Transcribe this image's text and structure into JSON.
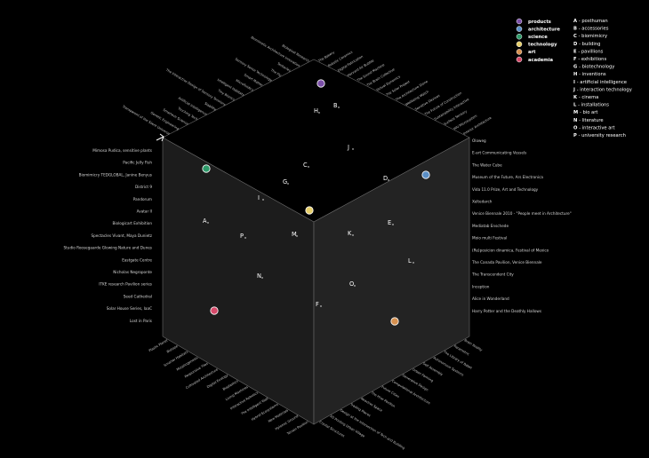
{
  "categories": [
    {
      "label": "products",
      "color": "#7b4fa8"
    },
    {
      "label": "architecture",
      "color": "#5b8fc6"
    },
    {
      "label": "science",
      "color": "#2e9a6a"
    },
    {
      "label": "technology",
      "color": "#e6cf6a"
    },
    {
      "label": "art",
      "color": "#d6904f"
    },
    {
      "label": "academia",
      "color": "#d64a6a"
    }
  ],
  "legend": [
    {
      "key": "A",
      "text": "- posthuman"
    },
    {
      "key": "B",
      "text": "- accessories"
    },
    {
      "key": "C",
      "text": "- biomimicry"
    },
    {
      "key": "D",
      "text": "- building"
    },
    {
      "key": "E",
      "text": "- pavillions"
    },
    {
      "key": "F",
      "text": "- exhibitions"
    },
    {
      "key": "G",
      "text": "- biotechnology"
    },
    {
      "key": "H",
      "text": "- inventions"
    },
    {
      "key": "I",
      "text": "- artificial intelligence"
    },
    {
      "key": "J",
      "text": "- interaction technology"
    },
    {
      "key": "K",
      "text": "- cinema"
    },
    {
      "key": "L",
      "text": "- installations"
    },
    {
      "key": "M",
      "text": "- bio art"
    },
    {
      "key": "N",
      "text": "- literature"
    },
    {
      "key": "O",
      "text": "- interactive art"
    },
    {
      "key": "P",
      "text": "- university research"
    }
  ],
  "points": [
    {
      "key": "H"
    },
    {
      "key": "B"
    },
    {
      "key": "J"
    },
    {
      "key": "C"
    },
    {
      "key": "G"
    },
    {
      "key": "I"
    },
    {
      "key": "D"
    },
    {
      "key": "A"
    },
    {
      "key": "P"
    },
    {
      "key": "M"
    },
    {
      "key": "K"
    },
    {
      "key": "E"
    },
    {
      "key": "L"
    },
    {
      "key": "N"
    },
    {
      "key": "O"
    },
    {
      "key": "F"
    }
  ],
  "left_labels": [
    "Mimosa Pudica, sensitive plants",
    "Pacific Jelly Fish",
    "Biomimicry TEDGLOBAL, Janine Benyus",
    "District 9",
    "Pandorum",
    "Avatar II",
    "Biologicart Exhibition",
    "Spectacles Vivant, Maya Dunietz",
    "Studio Roosegaarde Glowing Nature and Dunes",
    "Eastgate Centre",
    "Nicholas Negroponte",
    "ITKE research Pavilion series",
    "Seed Cathedral",
    "Solar House Series, IaaC",
    "Lost in Paris"
  ],
  "right_labels": [
    "Oloweg",
    "E-art Communicating Vessels",
    "The Water Cube",
    "Museum of the Future, Ars Electronica",
    "Vida 11.0 Prize, Art and Technology",
    "Xeltedarch",
    "Venice Biennale 2010 - \"People meet in Architecture\"",
    "Mediatab Enschede",
    "Moio multi Festival",
    "(Re)posicion dinamica, Festival of Mexico",
    "The Canada Pavilion, Venice Biennale",
    "The Transcendent City",
    "Inception",
    "Alice in Wonderland",
    "Harry Potter and the Deathly Hallows"
  ],
  "top_left_labels": [
    "Transparent of the Silent Universe",
    "Genetic Engineering",
    "Smartech Science",
    "Touching Tech",
    "Artificial Intelligence",
    "Stablilty",
    "The Interactive Design of Sensory Tensions",
    "Tiny Bionics",
    "Intelligent Habitats",
    "Microfluidics",
    "Smart Matter",
    "Sensory Sense Technology",
    "The Fly",
    "Tentacles",
    "Biomimetic Architecture Innovation",
    "Biological Research"
  ],
  "top_right_labels": [
    "The Bakery",
    "Robotic Ceramics",
    "Digital Fabrication",
    "Harvard Air Bubble",
    "The Sound Machine",
    "The Brain Collective",
    "Virtual Dynamics",
    "The Solar Project",
    "The Architecture Stone",
    "Wellbeing Watch",
    "Sensitive Devices",
    "The Future of Construction",
    "Sustainability Interactive",
    "Surface Sensory",
    "HIV Microsystem",
    "Interior Architecture"
  ],
  "bottom_left_labels": [
    "Plastic Planet",
    "Biotope",
    "Smarter Habitats",
    "Morphogenesis",
    "Responsive Tiles",
    "Cultivated Architecture",
    "Digital Ecology",
    "Bioplastics",
    "Living Machines",
    "Interactive Robotics",
    "The Intelligent Wall",
    "Hybrid Ecosystems",
    "New Materials",
    "Hylozoic Ground",
    "Terrain Pavilion"
  ],
  "bottom_right_labels": [
    "Brain Reality",
    "Parametric",
    "The Library of Babel",
    "Autonomous Systems",
    "Self Assembly",
    "Urban Farming",
    "Generative Design",
    "Computational Architecture",
    "Future Cities",
    "The Hive Pavilion",
    "Reactive Space",
    "Trading Places",
    "Design at the Intersection of Tech and Building",
    "3D Printing Urban Village",
    "Crystal Structures"
  ]
}
